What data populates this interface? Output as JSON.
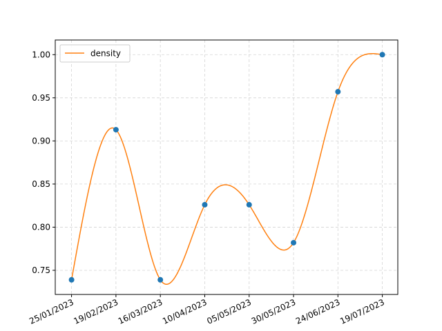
{
  "chart_data": {
    "type": "line",
    "x": [
      "25/01/2023",
      "19/02/2023",
      "16/03/2023",
      "10/04/2023",
      "05/05/2023",
      "30/05/2023",
      "24/06/2023",
      "19/07/2023"
    ],
    "series": [
      {
        "name": "density",
        "values": [
          0.739,
          0.913,
          0.739,
          0.826,
          0.826,
          0.782,
          0.957,
          1.0
        ],
        "line_color": "#ff7f0e",
        "marker_color": "#1f77b4",
        "smoothed": true
      }
    ],
    "ylim": [
      0.722,
      1.017
    ],
    "yticks": [
      0.75,
      0.8,
      0.85,
      0.9,
      0.95,
      1.0
    ],
    "ytick_labels": [
      "0.75",
      "0.80",
      "0.85",
      "0.90",
      "0.95",
      "1.00"
    ],
    "xtick_rotation_deg": 25,
    "grid": true,
    "legend": {
      "position": "top-left",
      "entries": [
        "density"
      ]
    }
  }
}
